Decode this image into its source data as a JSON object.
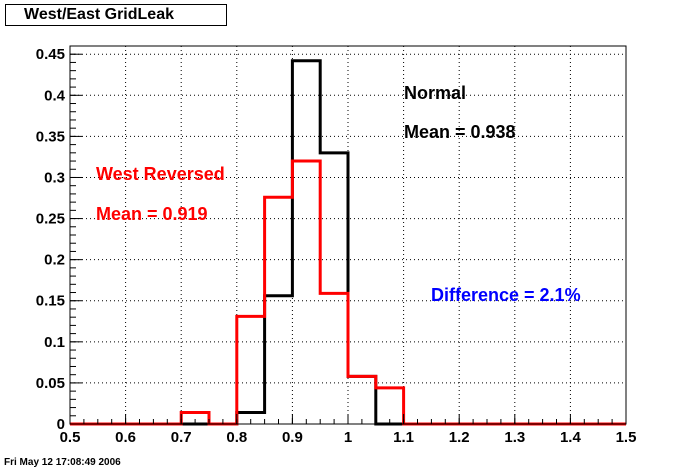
{
  "chart_data": {
    "type": "histogram",
    "title": "West/East GridLeak",
    "xlim": [
      0.5,
      1.5
    ],
    "ylim": [
      0,
      0.46
    ],
    "bin_width": 0.05,
    "x_ticks": [
      "0.5",
      "0.6",
      "0.7",
      "0.8",
      "0.9",
      "1",
      "1.1",
      "1.2",
      "1.3",
      "1.4",
      "1.5"
    ],
    "y_ticks": [
      "0",
      "0.05",
      "0.1",
      "0.15",
      "0.2",
      "0.25",
      "0.3",
      "0.35",
      "0.4",
      "0.45"
    ],
    "x_tick_values": [
      0.5,
      0.6,
      0.7,
      0.8,
      0.9,
      1.0,
      1.1,
      1.2,
      1.3,
      1.4,
      1.5
    ],
    "y_tick_values": [
      0,
      0.05,
      0.1,
      0.15,
      0.2,
      0.25,
      0.3,
      0.35,
      0.4,
      0.45
    ],
    "grid": true,
    "series": [
      {
        "name": "Normal",
        "color": "#000000",
        "bin_edges": [
          0.5,
          0.55,
          0.6,
          0.65,
          0.7,
          0.75,
          0.8,
          0.85,
          0.9,
          0.95,
          1.0,
          1.05,
          1.1,
          1.15,
          1.2,
          1.25,
          1.3,
          1.35,
          1.4,
          1.45,
          1.5
        ],
        "values": [
          0,
          0,
          0,
          0,
          0,
          0,
          0.014,
          0.156,
          0.442,
          0.33,
          0.058,
          0,
          0,
          0,
          0,
          0,
          0,
          0,
          0,
          0
        ]
      },
      {
        "name": "West Reversed",
        "color": "#ff0000",
        "bin_edges": [
          0.5,
          0.55,
          0.6,
          0.65,
          0.7,
          0.75,
          0.8,
          0.85,
          0.9,
          0.95,
          1.0,
          1.05,
          1.1,
          1.15,
          1.2,
          1.25,
          1.3,
          1.35,
          1.4,
          1.45,
          1.5
        ],
        "values": [
          0,
          0,
          0,
          0,
          0.014,
          0,
          0.131,
          0.276,
          0.32,
          0.159,
          0.058,
          0.044,
          0,
          0,
          0,
          0,
          0,
          0,
          0,
          0
        ]
      }
    ],
    "annotations": {
      "normal_label": "Normal",
      "normal_mean": "Mean = 0.938",
      "west_label": "West Reversed",
      "west_mean": "Mean = 0.919",
      "difference": "Difference = 2.1%"
    },
    "annotation_colors": {
      "normal": "#000000",
      "west": "#ff0000",
      "difference": "#0000ff"
    }
  },
  "footer": {
    "timestamp": "Fri May 12 17:08:49 2006"
  }
}
